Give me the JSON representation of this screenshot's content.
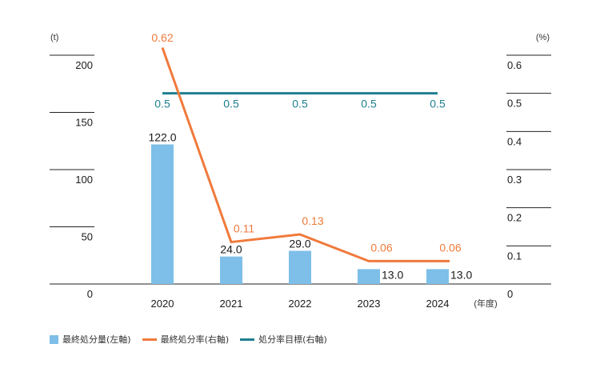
{
  "chart_data": {
    "type": "bar",
    "categories": [
      "2020",
      "2021",
      "2022",
      "2023",
      "2024"
    ],
    "x_unit_label": "(年度)",
    "y_left": {
      "unit": "(t)",
      "ticks": [
        0,
        50,
        100,
        150,
        200
      ],
      "ylim": [
        0,
        200
      ]
    },
    "y_right": {
      "unit": "(%)",
      "ticks": [
        "0",
        "0.1",
        "0.2",
        "0.3",
        "0.4",
        "0.5",
        "0.6"
      ],
      "ylim": [
        0,
        0.6
      ]
    },
    "series": [
      {
        "name": "最終処分量(左軸)",
        "kind": "bar",
        "axis": "left",
        "values": [
          122.0,
          24.0,
          29.0,
          13.0,
          13.0
        ],
        "labels": [
          "122.0",
          "24.0",
          "29.0",
          "13.0",
          "13.0"
        ],
        "color": "#7dbfe8"
      },
      {
        "name": "最終処分率(右軸)",
        "kind": "line",
        "axis": "right",
        "values": [
          0.62,
          0.11,
          0.13,
          0.06,
          0.06
        ],
        "labels": [
          "0.62",
          "0.11",
          "0.13",
          "0.06",
          "0.06"
        ],
        "color": "#f07a3c"
      },
      {
        "name": "処分率目標(右軸)",
        "kind": "line",
        "axis": "right",
        "values": [
          0.5,
          0.5,
          0.5,
          0.5,
          0.5
        ],
        "labels": [
          "0.5",
          "0.5",
          "0.5",
          "0.5",
          "0.5"
        ],
        "color": "#1f7f90"
      }
    ],
    "grid": true,
    "legend_position": "bottom-left"
  }
}
